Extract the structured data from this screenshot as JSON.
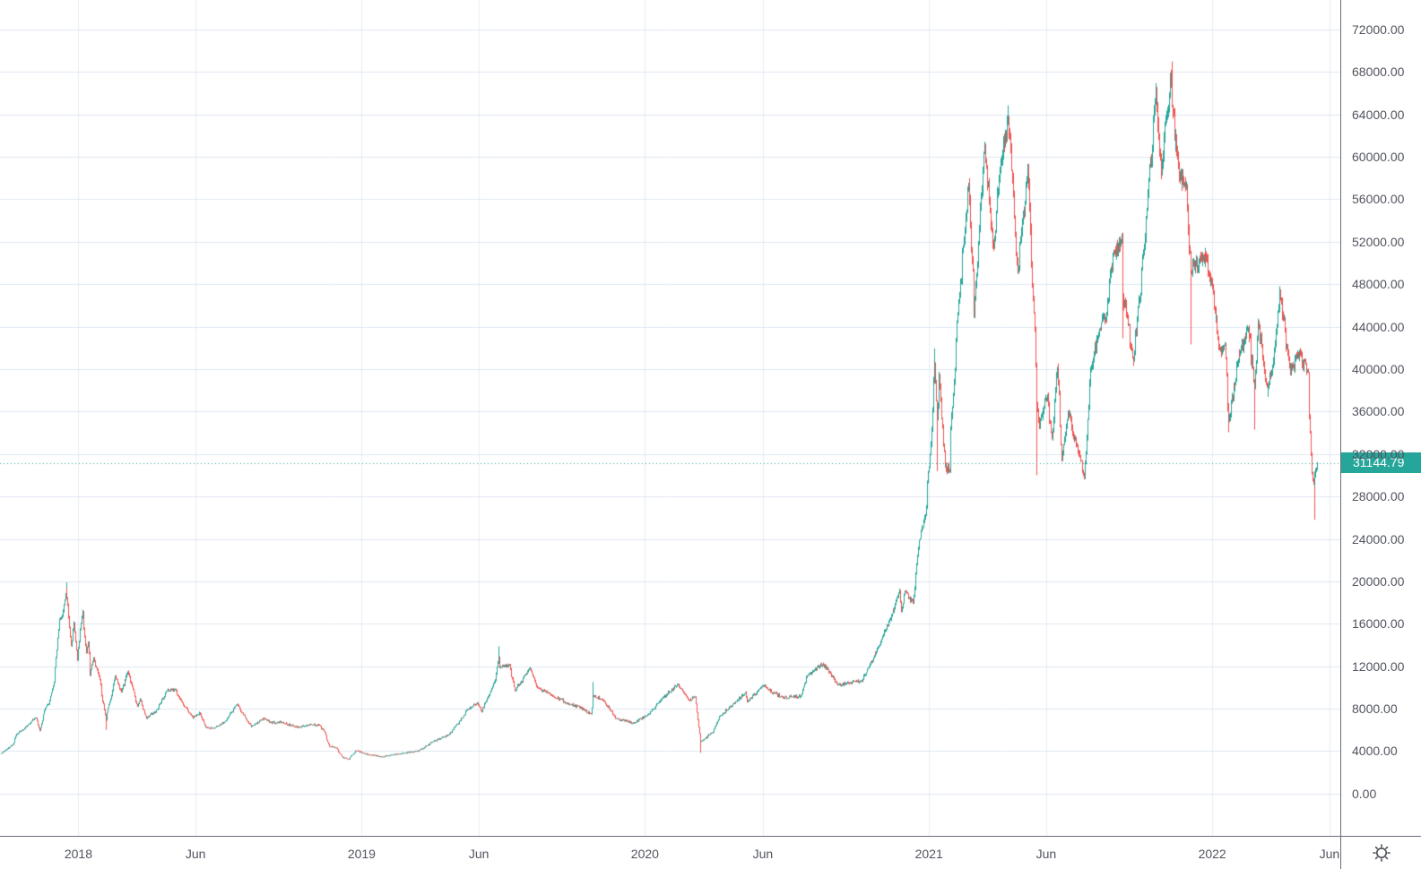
{
  "colors": {
    "up": "#26a69a",
    "down": "#ef5350",
    "last_price_bg": "#26a69a",
    "last_price_text": "#ffffff",
    "dotted_line": "#26a69a",
    "grid_horizontal": "#dfe7f0",
    "grid_vertical": "#e7ecf4",
    "axis_line": "#6a6d78",
    "axis_text": "#51545f",
    "background": "#ffffff"
  },
  "icons": {
    "time_axis_settings": "gear-sun-icon"
  },
  "chart_data": {
    "type": "candlestick",
    "last_price": 31144.79,
    "last_price_label": "31144.79",
    "y_axis": {
      "price_at_top": 74783,
      "price_at_bottom": -3985,
      "grid": true,
      "tick_labels": [
        "72000.00",
        "68000.00",
        "64000.00",
        "60000.00",
        "56000.00",
        "52000.00",
        "48000.00",
        "44000.00",
        "40000.00",
        "36000.00",
        "32000.00",
        "28000.00",
        "24000.00",
        "20000.00",
        "16000.00",
        "12000.00",
        "8000.00",
        "4000.00",
        "0.00"
      ]
    },
    "x_axis": {
      "domain_start": "2017-09-22",
      "domain_end": "2022-06-15",
      "grid": true,
      "ticks": [
        {
          "label": "2018",
          "date": "2018-01-01"
        },
        {
          "label": "Jun",
          "date": "2018-06-01"
        },
        {
          "label": "2019",
          "date": "2019-01-01"
        },
        {
          "label": "Jun",
          "date": "2019-06-01"
        },
        {
          "label": "2020",
          "date": "2020-01-01"
        },
        {
          "label": "Jun",
          "date": "2020-06-01"
        },
        {
          "label": "2021",
          "date": "2021-01-01"
        },
        {
          "label": "Jun",
          "date": "2021-06-01"
        },
        {
          "label": "2022",
          "date": "2022-01-01"
        },
        {
          "label": "Jun",
          "date": "2022-06-01"
        }
      ]
    },
    "anchors": [
      [
        "2017-09-23",
        3790
      ],
      [
        "2017-10-08",
        4600
      ],
      [
        "2017-10-13",
        5600
      ],
      [
        "2017-10-21",
        6000
      ],
      [
        "2017-11-01",
        6750
      ],
      [
        "2017-11-07",
        7150
      ],
      [
        "2017-11-12",
        5900
      ],
      [
        "2017-11-19",
        8050
      ],
      [
        "2017-11-25",
        8750
      ],
      [
        "2017-12-01",
        10900
      ],
      [
        "2017-12-07",
        16500
      ],
      [
        "2017-12-11",
        16700
      ],
      [
        "2017-12-16",
        19400,
        null,
        19900
      ],
      [
        "2017-12-22",
        13900
      ],
      [
        "2017-12-26",
        16100
      ],
      [
        "2017-12-30",
        12600
      ],
      [
        "2018-01-06",
        17150
      ],
      [
        "2018-01-11",
        13300
      ],
      [
        "2018-01-13",
        14200
      ],
      [
        "2018-01-16",
        11200
      ],
      [
        "2018-01-20",
        12800
      ],
      [
        "2018-01-27",
        11100
      ],
      [
        "2018-02-05",
        6950,
        6000
      ],
      [
        "2018-02-17",
        11100
      ],
      [
        "2018-02-25",
        9600
      ],
      [
        "2018-03-05",
        11500
      ],
      [
        "2018-03-18",
        8200
      ],
      [
        "2018-03-21",
        8900
      ],
      [
        "2018-03-29",
        7100
      ],
      [
        "2018-04-12",
        7900
      ],
      [
        "2018-04-24",
        9650
      ],
      [
        "2018-05-05",
        9850
      ],
      [
        "2018-05-13",
        8700
      ],
      [
        "2018-05-28",
        7100
      ],
      [
        "2018-06-06",
        7650
      ],
      [
        "2018-06-13",
        6300
      ],
      [
        "2018-06-24",
        6150
      ],
      [
        "2018-07-08",
        6750
      ],
      [
        "2018-07-24",
        8400
      ],
      [
        "2018-08-11",
        6300
      ],
      [
        "2018-08-28",
        7100
      ],
      [
        "2018-09-05",
        6700
      ],
      [
        "2018-09-21",
        6700
      ],
      [
        "2018-10-11",
        6250
      ],
      [
        "2018-10-24",
        6500
      ],
      [
        "2018-11-07",
        6450
      ],
      [
        "2018-11-14",
        5750
      ],
      [
        "2018-11-20",
        4450
      ],
      [
        "2018-11-29",
        4280
      ],
      [
        "2018-12-07",
        3400
      ],
      [
        "2018-12-15",
        3230
      ],
      [
        "2018-12-24",
        4050
      ],
      [
        "2019-01-10",
        3650
      ],
      [
        "2019-01-28",
        3460
      ],
      [
        "2019-02-08",
        3660
      ],
      [
        "2019-02-24",
        3800
      ],
      [
        "2019-03-16",
        4050
      ],
      [
        "2019-04-02",
        4880
      ],
      [
        "2019-04-23",
        5550
      ],
      [
        "2019-05-11",
        7200
      ],
      [
        "2019-05-16",
        7900
      ],
      [
        "2019-05-30",
        8550
      ],
      [
        "2019-06-04",
        7700
      ],
      [
        "2019-06-22",
        10700
      ],
      [
        "2019-06-26",
        12900,
        null,
        13880
      ],
      [
        "2019-06-28",
        11900
      ],
      [
        "2019-07-10",
        12100
      ],
      [
        "2019-07-17",
        9700
      ],
      [
        "2019-08-06",
        11800
      ],
      [
        "2019-08-15",
        10000
      ],
      [
        "2019-08-29",
        9500
      ],
      [
        "2019-09-24",
        8450
      ],
      [
        "2019-10-07",
        8200
      ],
      [
        "2019-10-23",
        7500
      ],
      [
        "2019-10-26",
        9250,
        null,
        10500
      ],
      [
        "2019-11-08",
        8800
      ],
      [
        "2019-11-25",
        7050
      ],
      [
        "2019-12-17",
        6650
      ],
      [
        "2020-01-03",
        7350
      ],
      [
        "2020-01-19",
        8650
      ],
      [
        "2020-02-12",
        10350
      ],
      [
        "2020-02-26",
        8800
      ],
      [
        "2020-03-06",
        9100
      ],
      [
        "2020-03-12",
        4900,
        3850
      ],
      [
        "2020-03-16",
        5050
      ],
      [
        "2020-03-29",
        5900
      ],
      [
        "2020-04-06",
        7300
      ],
      [
        "2020-04-29",
        8800
      ],
      [
        "2020-05-09",
        9550
      ],
      [
        "2020-05-11",
        8600
      ],
      [
        "2020-06-01",
        10200
      ],
      [
        "2020-06-15",
        9450
      ],
      [
        "2020-06-27",
        9050
      ],
      [
        "2020-07-20",
        9200
      ],
      [
        "2020-07-27",
        11000
      ],
      [
        "2020-08-17",
        12250
      ],
      [
        "2020-09-05",
        10250
      ],
      [
        "2020-09-21",
        10450
      ],
      [
        "2020-10-06",
        10600
      ],
      [
        "2020-10-21",
        12800
      ],
      [
        "2020-11-06",
        15500
      ],
      [
        "2020-11-18",
        17800
      ],
      [
        "2020-11-24",
        19100
      ],
      [
        "2020-11-26",
        17150
      ],
      [
        "2020-12-01",
        19000
      ],
      [
        "2020-12-11",
        18050
      ],
      [
        "2020-12-19",
        23850
      ],
      [
        "2020-12-27",
        26250
      ],
      [
        "2021-01-03",
        33000
      ],
      [
        "2021-01-08",
        40600,
        null,
        41950
      ],
      [
        "2021-01-11",
        35450,
        30400
      ],
      [
        "2021-01-14",
        39450
      ],
      [
        "2021-01-21",
        30850
      ],
      [
        "2021-01-27",
        30400
      ],
      [
        "2021-01-29",
        34300
      ],
      [
        "2021-02-08",
        46400
      ],
      [
        "2021-02-21",
        57500
      ],
      [
        "2021-02-28",
        45150
      ],
      [
        "2021-03-13",
        61200
      ],
      [
        "2021-03-25",
        51350
      ],
      [
        "2021-04-02",
        59000
      ],
      [
        "2021-04-13",
        63550,
        null,
        64850
      ],
      [
        "2021-04-25",
        49050
      ],
      [
        "2021-05-08",
        58850
      ],
      [
        "2021-05-17",
        43550
      ],
      [
        "2021-05-19",
        36700,
        30000
      ],
      [
        "2021-05-23",
        34700
      ],
      [
        "2021-06-02",
        37600
      ],
      [
        "2021-06-08",
        33400
      ],
      [
        "2021-06-15",
        40150
      ],
      [
        "2021-06-21",
        31600
      ],
      [
        "2021-06-29",
        35900
      ],
      [
        "2021-07-20",
        29800
      ],
      [
        "2021-07-28",
        40000
      ],
      [
        "2021-08-08",
        43800
      ],
      [
        "2021-08-17",
        44700
      ],
      [
        "2021-08-23",
        49500
      ],
      [
        "2021-09-06",
        52650
      ],
      [
        "2021-09-07",
        46800,
        42900
      ],
      [
        "2021-09-13",
        44950
      ],
      [
        "2021-09-21",
        40700
      ],
      [
        "2021-10-05",
        51500
      ],
      [
        "2021-10-20",
        66000,
        null,
        66950
      ],
      [
        "2021-10-27",
        58450
      ],
      [
        "2021-11-08",
        67550
      ],
      [
        "2021-11-10",
        64900,
        null,
        68990
      ],
      [
        "2021-11-19",
        58100
      ],
      [
        "2021-11-28",
        57300
      ],
      [
        "2021-12-04",
        49200,
        42330
      ],
      [
        "2021-12-23",
        50800
      ],
      [
        "2022-01-01",
        47700
      ],
      [
        "2022-01-10",
        41850
      ],
      [
        "2022-01-17",
        42250
      ],
      [
        "2022-01-22",
        35100,
        34050
      ],
      [
        "2022-02-04",
        41500
      ],
      [
        "2022-02-16",
        43900
      ],
      [
        "2022-02-24",
        38350,
        34300
      ],
      [
        "2022-03-01",
        44400
      ],
      [
        "2022-03-13",
        37800
      ],
      [
        "2022-03-21",
        41000
      ],
      [
        "2022-03-29",
        47450
      ],
      [
        "2022-04-11",
        39550
      ],
      [
        "2022-04-21",
        41500
      ],
      [
        "2022-05-04",
        39700
      ],
      [
        "2022-05-09",
        30100
      ],
      [
        "2022-05-12",
        29000,
        25800
      ],
      [
        "2022-05-13",
        30050
      ],
      [
        "2022-05-15",
        30600
      ],
      [
        "2022-05-16",
        31144.79
      ]
    ]
  }
}
